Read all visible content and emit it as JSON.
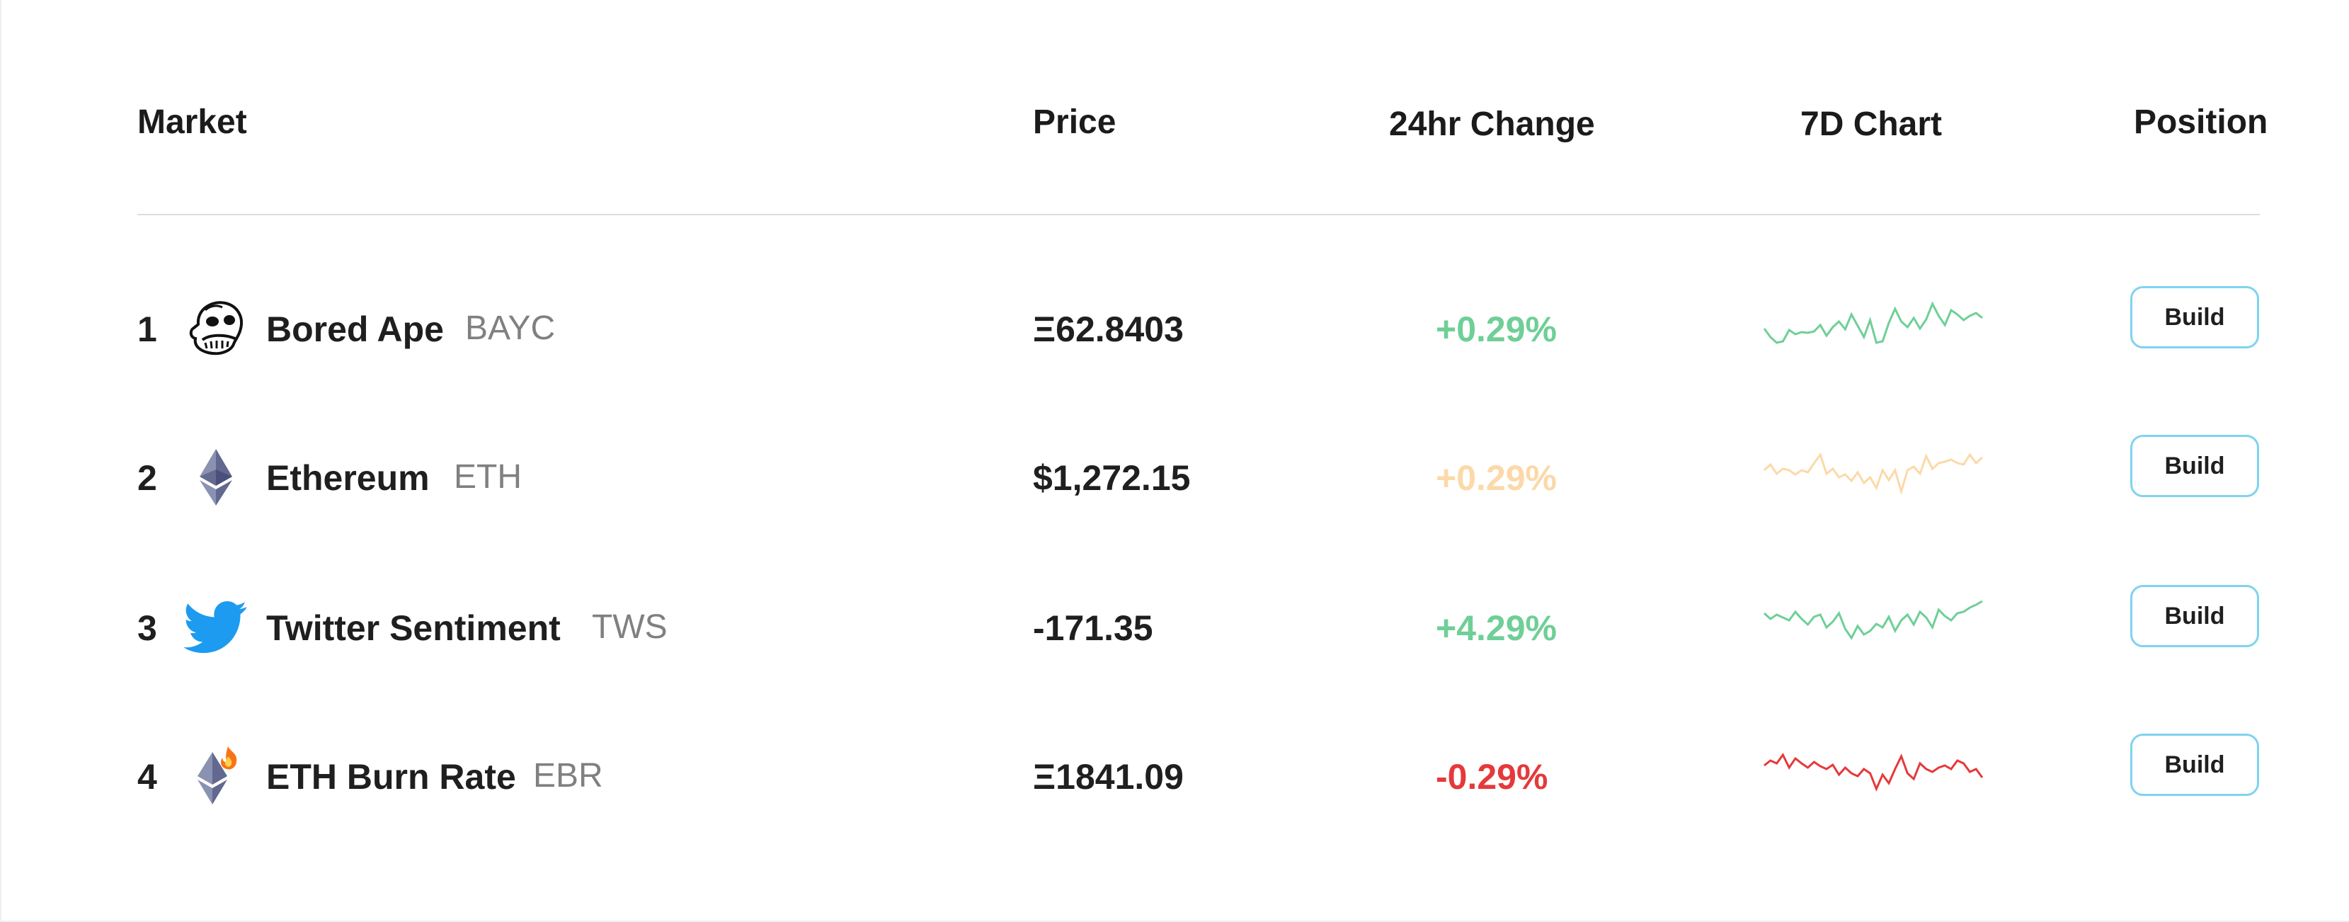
{
  "colors": {
    "positive": "#6fcf97",
    "neutral": "#fbd9a8",
    "negative": "#e5393b",
    "button_border": "#7fd3ef"
  },
  "header": {
    "market": "Market",
    "price": "Price",
    "change": "24hr Change",
    "chart": "7D Chart",
    "position": "Position"
  },
  "rows": [
    {
      "rank": "1",
      "icon": "bored-ape-icon",
      "name": "Bored Ape",
      "ticker": "BAYC",
      "price": "Ξ62.8403",
      "change": "+0.29%",
      "change_color": "#6fcf97",
      "button": "Build",
      "spark": [
        40,
        52,
        60,
        58,
        42,
        48,
        45,
        46,
        44,
        35,
        50,
        38,
        30,
        41,
        20,
        36,
        52,
        28,
        60,
        58,
        32,
        12,
        30,
        38,
        25,
        40,
        27,
        5,
        22,
        35,
        14,
        20,
        28,
        22,
        18,
        25
      ]
    },
    {
      "rank": "2",
      "icon": "ethereum-icon",
      "name": "Ethereum",
      "ticker": "ETH",
      "price": "$1,272.15",
      "change": "+0.29%",
      "change_color": "#fbd9a8",
      "button": "Build",
      "spark": [
        30,
        22,
        35,
        28,
        30,
        36,
        30,
        33,
        20,
        8,
        35,
        28,
        40,
        36,
        45,
        33,
        48,
        40,
        55,
        30,
        44,
        30,
        60,
        30,
        25,
        35,
        10,
        28,
        20,
        18,
        15,
        20,
        22,
        8,
        20,
        12
      ]
    },
    {
      "rank": "3",
      "icon": "twitter-bird-icon",
      "name": "Twitter Sentiment",
      "ticker": "TWS",
      "price": "-171.35",
      "change": "+4.29%",
      "change_color": "#6fcf97",
      "button": "Build",
      "spark": [
        20,
        28,
        22,
        26,
        30,
        18,
        28,
        36,
        25,
        22,
        40,
        32,
        20,
        42,
        55,
        38,
        50,
        45,
        35,
        40,
        25,
        45,
        30,
        22,
        36,
        18,
        26,
        40,
        15,
        24,
        30,
        20,
        18,
        12,
        8,
        3
      ]
    },
    {
      "rank": "4",
      "icon": "eth-burn-icon",
      "name": "ETH Burn Rate",
      "ticker": "EBR",
      "price": "Ξ1841.09",
      "change": "-0.29%",
      "change_color": "#e5393b",
      "button": "Build",
      "spark": [
        25,
        18,
        22,
        10,
        28,
        15,
        22,
        28,
        20,
        26,
        30,
        24,
        38,
        28,
        36,
        40,
        30,
        36,
        58,
        38,
        50,
        30,
        12,
        36,
        44,
        22,
        30,
        34,
        28,
        25,
        30,
        18,
        22,
        34,
        30,
        42
      ]
    }
  ]
}
